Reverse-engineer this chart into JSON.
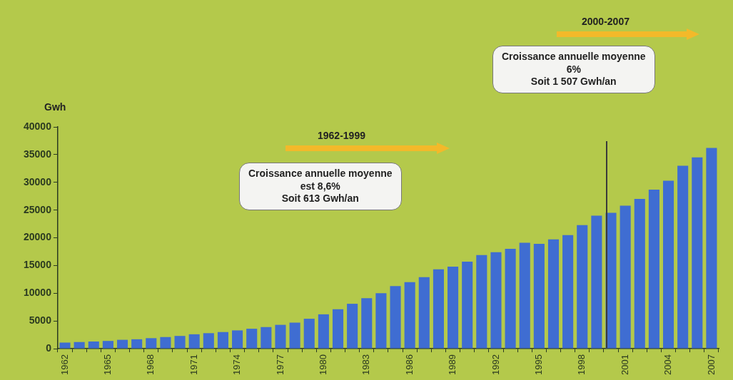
{
  "chart_data": {
    "type": "bar",
    "ylabel": "Gwh",
    "categories": [
      "1962",
      null,
      null,
      "1965",
      null,
      null,
      "1968",
      null,
      null,
      "1971",
      null,
      null,
      "1974",
      null,
      null,
      "1977",
      null,
      null,
      "1980",
      null,
      null,
      "1983",
      null,
      null,
      "1986",
      null,
      null,
      "1989",
      null,
      null,
      "1992",
      null,
      null,
      "1995",
      null,
      null,
      "1998",
      null,
      null,
      "2001",
      null,
      null,
      "2004",
      null,
      null,
      "2007"
    ],
    "values": [
      1100,
      1200,
      1300,
      1400,
      1600,
      1700,
      1900,
      2100,
      2300,
      2600,
      2800,
      3000,
      3300,
      3600,
      3900,
      4300,
      4700,
      5400,
      6200,
      7100,
      8100,
      9100,
      10000,
      11300,
      12000,
      12900,
      14300,
      14800,
      15700,
      16900,
      17400,
      18000,
      19100,
      18900,
      19700,
      20500,
      22300,
      24000,
      24500,
      25800,
      27000,
      28700,
      30300,
      33000,
      34500,
      36200
    ],
    "color": "#3f6dd2",
    "ylim": [
      0,
      40000
    ],
    "yticks": [
      0,
      5000,
      10000,
      15000,
      20000,
      25000,
      30000,
      35000,
      40000
    ],
    "annotations": [
      "1962-1999",
      "Croissance annuelle moyenne\nest  8,6%\nSoit 613 Gwh/an",
      "2000-2007",
      "Croissance annuelle moyenne\n6%\nSoit 1 507 Gwh/an"
    ]
  }
}
